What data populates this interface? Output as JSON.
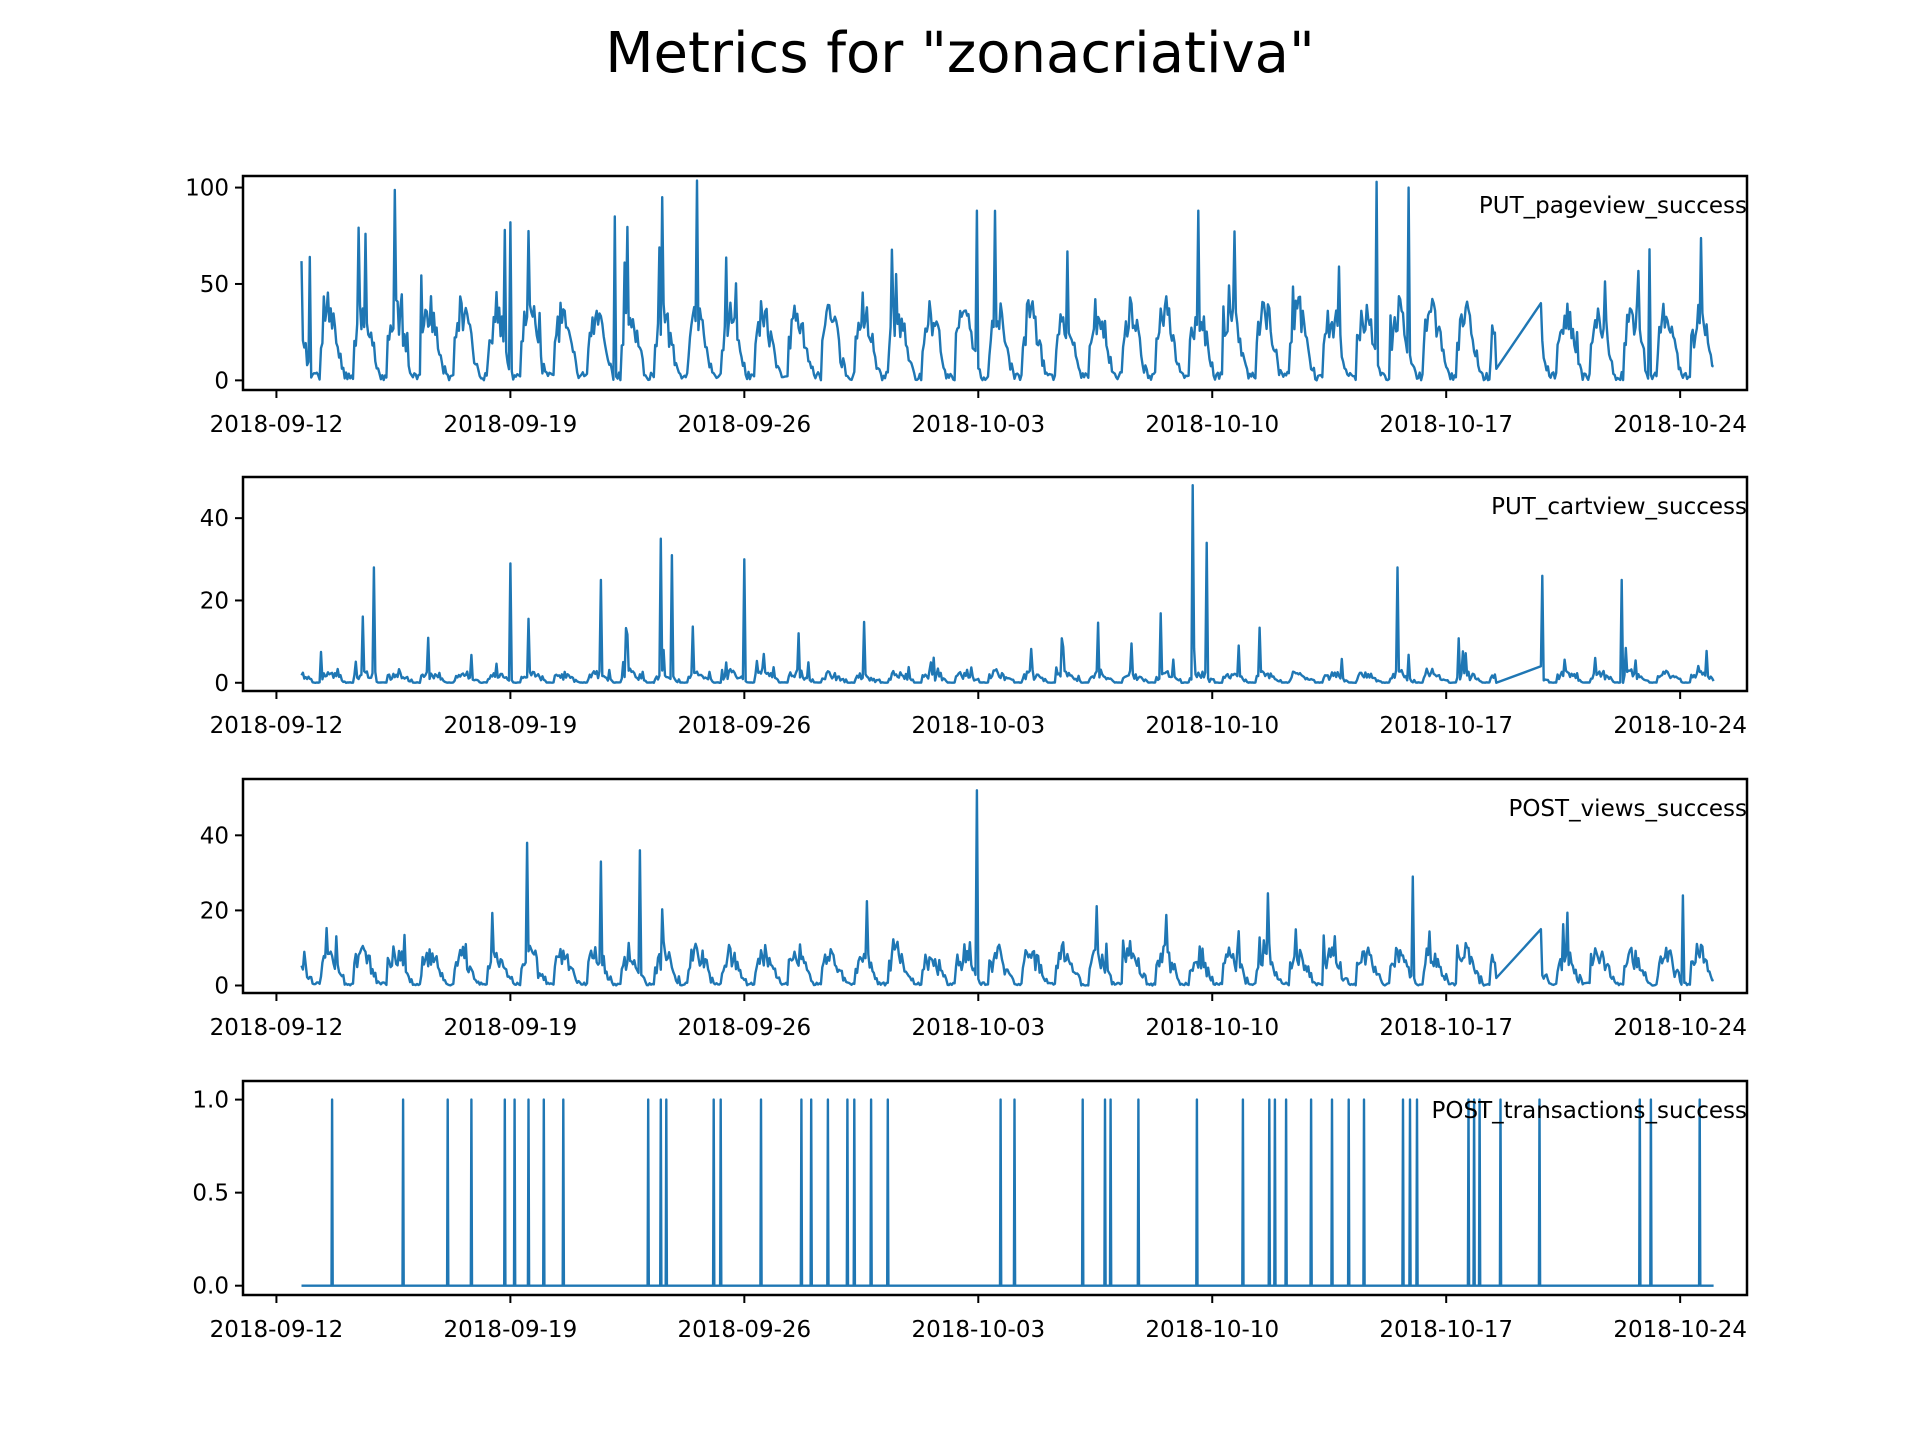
{
  "chart_data": {
    "type": "line",
    "title": "Metrics for \"zonacriativa\"",
    "x_range": [
      "2018-09-11",
      "2018-10-26"
    ],
    "x_ticks": [
      "2018-09-12",
      "2018-09-19",
      "2018-09-26",
      "2018-10-03",
      "2018-10-10",
      "2018-10-17",
      "2018-10-24"
    ],
    "data_range": [
      "2018-09-12T18:00",
      "2018-10-25T00:00"
    ],
    "grid": false,
    "line_color": "#1f77b4",
    "subplots": [
      {
        "series": "PUT_pageview_success",
        "y_ticks": [
          0,
          50,
          100
        ],
        "ylim": [
          -5,
          106
        ],
        "spikes": [
          {
            "x": "2018-09-13T00:00",
            "y": 64
          },
          {
            "x": "2018-09-14T16:00",
            "y": 76
          },
          {
            "x": "2018-09-18T20:00",
            "y": 78
          },
          {
            "x": "2018-09-19T00:00",
            "y": 82
          },
          {
            "x": "2018-09-22T03:00",
            "y": 85
          },
          {
            "x": "2018-09-23T13:00",
            "y": 95
          },
          {
            "x": "2018-10-02T23:00",
            "y": 88
          },
          {
            "x": "2018-10-09T14:00",
            "y": 88
          },
          {
            "x": "2018-10-14T22:00",
            "y": 103
          },
          {
            "x": "2018-10-15T21:00",
            "y": 100
          },
          {
            "x": "2018-10-23T02:00",
            "y": 68
          }
        ],
        "gap": {
          "from": "2018-10-18T12:00",
          "to": "2018-10-19T20:00",
          "y_from": 6,
          "y_to": 40
        }
      },
      {
        "series": "PUT_cartview_success",
        "y_ticks": [
          0,
          20,
          40
        ],
        "ylim": [
          -2,
          50
        ],
        "spikes": [
          {
            "x": "2018-09-14T22:00",
            "y": 28
          },
          {
            "x": "2018-09-19T00:00",
            "y": 29
          },
          {
            "x": "2018-09-21T17:00",
            "y": 25
          },
          {
            "x": "2018-09-23T12:00",
            "y": 35
          },
          {
            "x": "2018-09-23T20:00",
            "y": 31
          },
          {
            "x": "2018-09-26T00:00",
            "y": 30
          },
          {
            "x": "2018-10-09T10:00",
            "y": 48
          },
          {
            "x": "2018-10-09T20:00",
            "y": 34
          },
          {
            "x": "2018-10-15T13:00",
            "y": 28
          },
          {
            "x": "2018-10-19T21:00",
            "y": 26
          },
          {
            "x": "2018-10-22T06:00",
            "y": 25
          }
        ],
        "gap": {
          "from": "2018-10-18T12:00",
          "to": "2018-10-19T20:00",
          "y_from": 0,
          "y_to": 4
        }
      },
      {
        "series": "POST_views_success",
        "y_ticks": [
          0,
          20,
          40
        ],
        "ylim": [
          -2,
          55
        ],
        "spikes": [
          {
            "x": "2018-09-19T12:00",
            "y": 38
          },
          {
            "x": "2018-09-21T17:00",
            "y": 33
          },
          {
            "x": "2018-09-22T21:00",
            "y": 36
          },
          {
            "x": "2018-10-02T23:00",
            "y": 52
          },
          {
            "x": "2018-10-16T00:00",
            "y": 29
          },
          {
            "x": "2018-10-24T02:00",
            "y": 24
          }
        ],
        "gap": {
          "from": "2018-10-18T12:00",
          "to": "2018-10-19T20:00",
          "y_from": 2,
          "y_to": 15
        }
      },
      {
        "series": "POST_transactions_success",
        "y_ticks": [
          "0.0",
          "0.5",
          "1.0"
        ],
        "ylim": [
          -0.05,
          1.1
        ],
        "events": [
          "2018-09-13T16:00",
          "2018-09-15T19:00",
          "2018-09-17T03:00",
          "2018-09-17T20:00",
          "2018-09-18T20:00",
          "2018-09-19T03:00",
          "2018-09-19T13:00",
          "2018-09-20T00:00",
          "2018-09-20T14:00",
          "2018-09-23T03:00",
          "2018-09-23T12:00",
          "2018-09-23T16:00",
          "2018-09-25T02:00",
          "2018-09-25T07:00",
          "2018-09-26T12:00",
          "2018-09-27T17:00",
          "2018-09-28T00:00",
          "2018-09-28T12:00",
          "2018-09-29T02:00",
          "2018-09-29T07:00",
          "2018-09-29T19:00",
          "2018-09-30T07:00",
          "2018-10-03T16:00",
          "2018-10-04T02:00",
          "2018-10-06T03:00",
          "2018-10-06T19:00",
          "2018-10-06T23:00",
          "2018-10-07T19:00",
          "2018-10-09T13:00",
          "2018-10-10T22:00",
          "2018-10-11T17:00",
          "2018-10-11T21:00",
          "2018-10-12T05:00",
          "2018-10-12T23:00",
          "2018-10-13T14:00",
          "2018-10-14T02:00",
          "2018-10-14T13:00",
          "2018-10-15T17:00",
          "2018-10-15T22:00",
          "2018-10-16T03:00",
          "2018-10-17T16:00",
          "2018-10-17T20:00",
          "2018-10-18T00:00",
          "2018-10-18T15:00",
          "2018-10-19T19:00",
          "2018-10-22T19:00",
          "2018-10-23T03:00",
          "2018-10-24T14:00"
        ]
      }
    ]
  }
}
